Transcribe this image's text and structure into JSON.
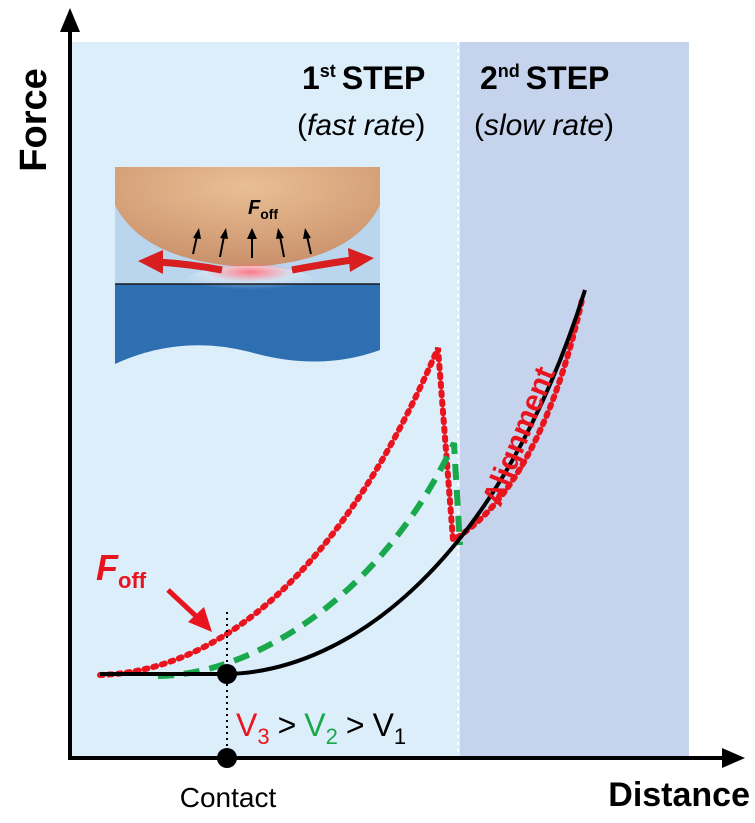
{
  "axes": {
    "y_label": "Force",
    "x_label": "Distance"
  },
  "contact_label": "Contact",
  "steps": {
    "first": {
      "number": "1",
      "superscript": "st",
      "title": "STEP",
      "rate_open": "(",
      "rate": "fast rate",
      "rate_close": ")"
    },
    "second": {
      "number": "2",
      "superscript": "nd",
      "title": "STEP",
      "rate_open": "(",
      "rate": "slow rate",
      "rate_close": ")"
    }
  },
  "annotations": {
    "alignment": "Alignment",
    "foff_main": "F",
    "foff_sub": "off",
    "inset_foff_main": "F",
    "inset_foff_sub": "off"
  },
  "velocity_relation": {
    "v3": "V",
    "v3_sub": "3",
    "gt1": ">",
    "v2": "V",
    "v2_sub": "2",
    "gt2": ">",
    "v1": "V",
    "v1_sub": "1"
  },
  "colors": {
    "region_fast": "#ddeefb",
    "region_slow": "#c5d3ec",
    "curve_v1": "#000000",
    "curve_v2": "#1aa84c",
    "curve_v3": "#e8141e",
    "annotation_red": "#e8141e",
    "inset_tip": "#e3b287",
    "inset_medium": "#b9d6ee",
    "inset_substrate": "#2d6fb1"
  }
}
